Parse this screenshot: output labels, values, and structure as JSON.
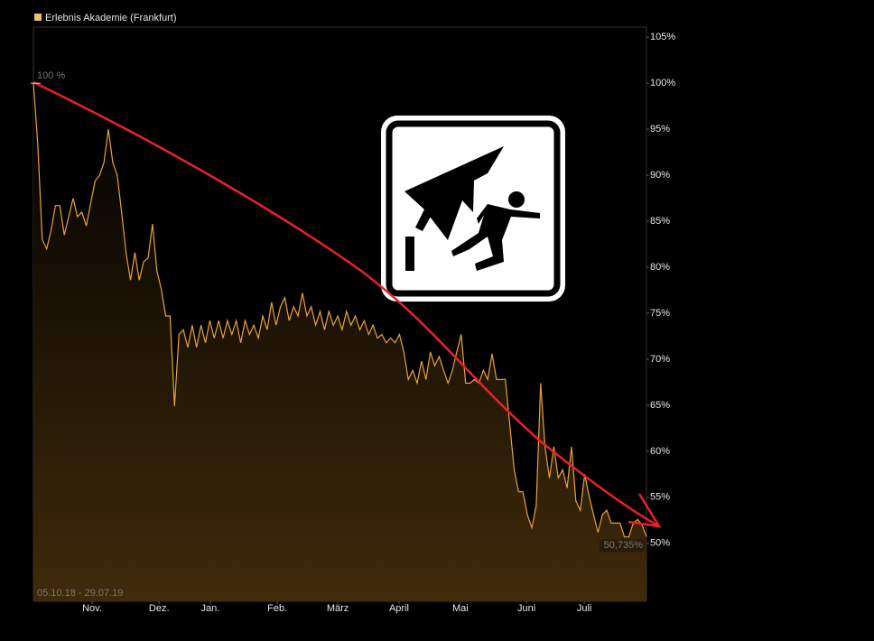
{
  "chart_data": {
    "type": "area",
    "legend_label": "Erlebnis Akademie (Frankfurt)",
    "color": "#e8a23a",
    "annotations": [
      "100 %",
      "05.10.18 - 29.07.19"
    ],
    "last_value_label": "50,735%",
    "values": [
      100,
      93.3,
      83,
      82,
      84,
      86.7,
      86.7,
      83.5,
      85.5,
      87.5,
      85.5,
      86,
      84.5,
      87,
      89.4,
      90,
      91.4,
      95,
      91.4,
      90,
      86,
      81.6,
      78.6,
      81.6,
      78.6,
      80.6,
      81,
      84.7,
      79.6,
      77.6,
      74.7,
      74.7,
      64.9,
      72.7,
      73.2,
      71.3,
      73.7,
      71.3,
      73.7,
      71.8,
      74.2,
      72.3,
      74.2,
      72.3,
      74.2,
      72.7,
      74.2,
      71.8,
      74.2,
      72.7,
      73.7,
      72.3,
      74.7,
      73.2,
      76.2,
      73.7,
      75.7,
      76.7,
      74.2,
      75.7,
      74.7,
      77.2,
      74.7,
      75.7,
      73.7,
      75.2,
      73.2,
      75.2,
      73.7,
      74.7,
      73.2,
      75.2,
      73.7,
      74.7,
      73.2,
      74.2,
      72.7,
      73.7,
      72.3,
      72.7,
      71.8,
      72.3,
      71.8,
      72.7,
      70.8,
      67.8,
      68.8,
      67.4,
      69.8,
      67.8,
      70.8,
      69.3,
      70.3,
      68.8,
      67.4,
      68.8,
      70.8,
      72.7,
      67.4,
      67.4,
      67.8,
      67.4,
      68.8,
      67.8,
      70.6,
      67.8,
      67.8,
      67.8,
      62.9,
      58,
      55.6,
      55.6,
      53.1,
      51.7,
      54.1,
      67.4,
      60.5,
      57.1,
      60.5,
      57.1,
      58,
      56,
      60.5,
      54.6,
      53.6,
      57.5,
      55.1,
      53.1,
      51.2,
      53.1,
      53.6,
      52.2,
      52.2,
      52.2,
      50.7,
      50.7,
      52.2,
      52.6,
      52,
      50.735
    ],
    "xlim": [
      0,
      139
    ],
    "xticks": [
      {
        "value": 13.3,
        "label": "Nov."
      },
      {
        "value": 28.5,
        "label": "Dez."
      },
      {
        "value": 40.1,
        "label": "Jan."
      },
      {
        "value": 55.3,
        "label": "Feb."
      },
      {
        "value": 69,
        "label": "März"
      },
      {
        "value": 82.9,
        "label": "April"
      },
      {
        "value": 96.8,
        "label": "Mai"
      },
      {
        "value": 111.8,
        "label": "Juni"
      },
      {
        "value": 124.9,
        "label": "Juli"
      }
    ],
    "ylim": [
      43.7,
      106.1
    ],
    "yticks": [
      {
        "value": 50,
        "label": "50%"
      },
      {
        "value": 55,
        "label": "55%"
      },
      {
        "value": 60,
        "label": "60%"
      },
      {
        "value": 65,
        "label": "65%"
      },
      {
        "value": 70,
        "label": "70%"
      },
      {
        "value": 75,
        "label": "75%"
      },
      {
        "value": 80,
        "label": "80%"
      },
      {
        "value": 85,
        "label": "85%"
      },
      {
        "value": 90,
        "label": "90%"
      },
      {
        "value": 95,
        "label": "95%"
      },
      {
        "value": 100,
        "label": "100%"
      },
      {
        "value": 105,
        "label": "105%"
      }
    ]
  }
}
